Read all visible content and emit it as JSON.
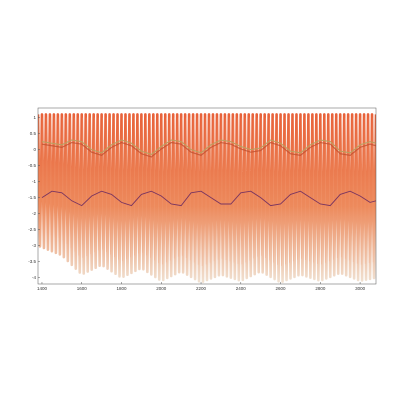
{
  "chart_data": {
    "type": "line",
    "title": "",
    "xlabel": "",
    "ylabel": "",
    "xlim": [
      1380,
      3080
    ],
    "ylim": [
      -4.2,
      1.3
    ],
    "grid": false,
    "legend": "none",
    "x_ticks": [
      1400,
      1600,
      1800,
      2000,
      2200,
      2400,
      2600,
      2800,
      3000
    ],
    "y_ticks": [
      1,
      0.5,
      0,
      -0.5,
      -1,
      -1.5,
      -2,
      -2.5,
      -3,
      -3.5,
      -4
    ],
    "x_tick_labels": [
      "1400",
      "1600",
      "1800",
      "2000",
      "2200",
      "2400",
      "2600",
      "2800",
      "3000"
    ],
    "y_tick_labels": [
      "1",
      "0.5",
      "0",
      "-0.5",
      "-1",
      "-1.5",
      "-2",
      "-2.5",
      "-3",
      "-3.5",
      "-4"
    ],
    "colors": {
      "fill_top": "#e8623a",
      "fill_mid": "#ed8a5c",
      "fill_bottom": "#f0e0d0",
      "upper_line": "#b8a060",
      "upper_line_dark": "#c05030",
      "lower_line": "#7a3560",
      "axis": "#555555"
    },
    "series": [
      {
        "role": "oscillating band",
        "period": 20,
        "upper_bound": 1.1,
        "lower_bound_min": -4.15,
        "lower_bound_envelope": [
          [
            1380,
            -3.0
          ],
          [
            1500,
            -3.3
          ],
          [
            1600,
            -3.9
          ],
          [
            1700,
            -3.6
          ],
          [
            1800,
            -4.0
          ],
          [
            1900,
            -3.7
          ],
          [
            2000,
            -4.1
          ],
          [
            2100,
            -3.8
          ],
          [
            2200,
            -4.15
          ],
          [
            2300,
            -3.9
          ],
          [
            2400,
            -4.1
          ],
          [
            2500,
            -3.8
          ],
          [
            2600,
            -4.15
          ],
          [
            2700,
            -3.9
          ],
          [
            2800,
            -4.1
          ],
          [
            2900,
            -3.85
          ],
          [
            3000,
            -4.1
          ],
          [
            3080,
            -4.0
          ]
        ]
      },
      {
        "role": "upper line",
        "x": [
          1400,
          1450,
          1500,
          1550,
          1600,
          1650,
          1700,
          1750,
          1800,
          1850,
          1900,
          1950,
          2000,
          2050,
          2100,
          2150,
          2200,
          2250,
          2300,
          2350,
          2400,
          2450,
          2500,
          2550,
          2600,
          2650,
          2700,
          2750,
          2800,
          2850,
          2900,
          2950,
          3000,
          3050,
          3080
        ],
        "y": [
          0.25,
          0.2,
          0.15,
          0.3,
          0.25,
          0.0,
          -0.1,
          0.15,
          0.3,
          0.2,
          -0.05,
          -0.15,
          0.1,
          0.3,
          0.25,
          0.0,
          -0.1,
          0.15,
          0.3,
          0.25,
          0.1,
          0.0,
          0.05,
          0.3,
          0.2,
          -0.05,
          -0.1,
          0.15,
          0.3,
          0.25,
          -0.05,
          -0.1,
          0.15,
          0.25,
          0.2
        ]
      },
      {
        "role": "lower line",
        "x": [
          1400,
          1450,
          1500,
          1550,
          1600,
          1650,
          1700,
          1750,
          1800,
          1850,
          1900,
          1950,
          2000,
          2050,
          2100,
          2150,
          2200,
          2250,
          2300,
          2350,
          2400,
          2450,
          2500,
          2550,
          2600,
          2650,
          2700,
          2750,
          2800,
          2850,
          2900,
          2950,
          3000,
          3050,
          3080
        ],
        "y": [
          -1.5,
          -1.3,
          -1.35,
          -1.6,
          -1.75,
          -1.45,
          -1.3,
          -1.4,
          -1.65,
          -1.75,
          -1.4,
          -1.3,
          -1.45,
          -1.7,
          -1.75,
          -1.35,
          -1.3,
          -1.5,
          -1.7,
          -1.7,
          -1.35,
          -1.3,
          -1.5,
          -1.75,
          -1.7,
          -1.4,
          -1.3,
          -1.5,
          -1.7,
          -1.75,
          -1.4,
          -1.3,
          -1.45,
          -1.65,
          -1.6
        ]
      }
    ]
  }
}
